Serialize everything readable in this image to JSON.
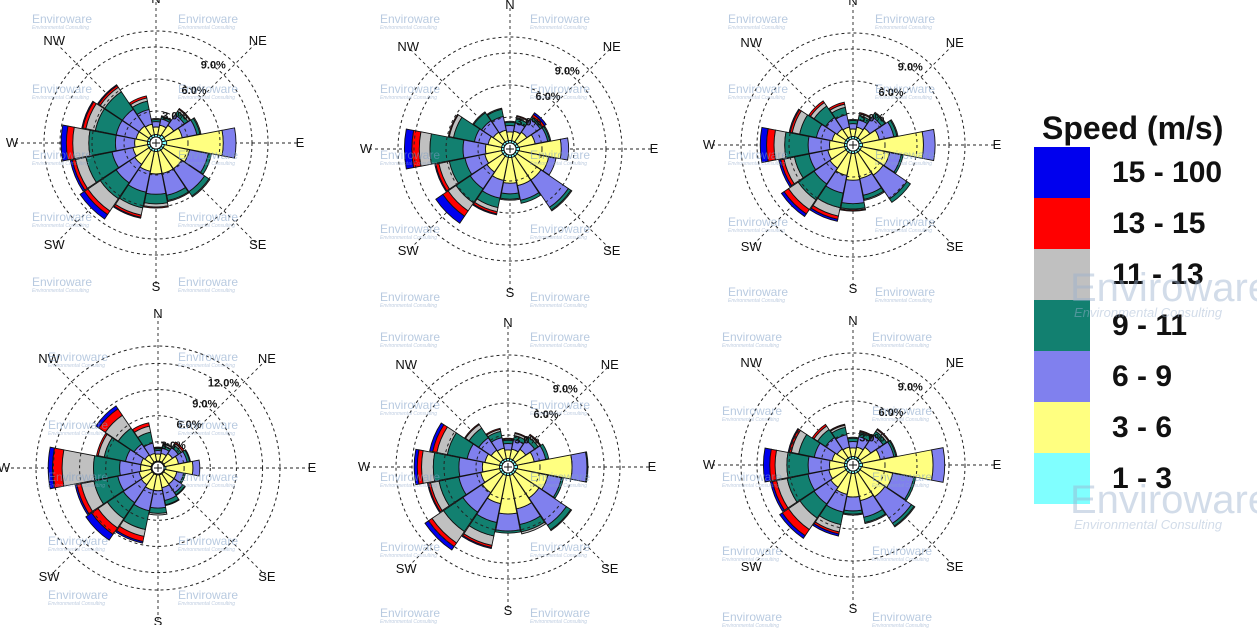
{
  "watermark": {
    "brand": "Enviroware",
    "tagline": "Environmental Consulting"
  },
  "legend": {
    "title": "Speed (m/s)",
    "classes": [
      {
        "label": "15 - 100",
        "color": "#0000ee"
      },
      {
        "label": "13 - 15",
        "color": "#ff0000"
      },
      {
        "label": "11 - 13",
        "color": "#c0c0c0"
      },
      {
        "label": "9 - 11",
        "color": "#128070"
      },
      {
        "label": "6 - 9",
        "color": "#8080ee"
      },
      {
        "label": "3 - 6",
        "color": "#ffff80"
      },
      {
        "label": "1 - 3",
        "color": "#80ffff"
      }
    ]
  },
  "chart_data": [
    {
      "type": "windrose",
      "directions": [
        "N",
        "NNE",
        "NE",
        "ENE",
        "E",
        "ESE",
        "SE",
        "SSE",
        "S",
        "SSW",
        "SW",
        "WSW",
        "W",
        "WNW",
        "NW",
        "NNW"
      ],
      "direction_labels": [
        "N",
        "NE",
        "E",
        "SE",
        "S",
        "SW",
        "W",
        "NW"
      ],
      "speed_classes": [
        "1 - 3",
        "3 - 6",
        "6 - 9",
        "9 - 11",
        "11 - 13",
        "13 - 15",
        "15 - 100"
      ],
      "ring_labels": [
        "3.0%",
        "6.0%",
        "9.0%"
      ],
      "r_max_pct": 10.5,
      "cumulative_pct": [
        [
          0.8,
          1.5,
          2.0,
          2.2,
          2.3,
          2.3,
          2.3
        ],
        [
          0.8,
          1.7,
          2.3,
          2.5,
          2.6,
          2.6,
          2.6
        ],
        [
          0.9,
          2.0,
          3.2,
          3.6,
          3.8,
          3.9,
          3.9
        ],
        [
          0.9,
          2.5,
          3.9,
          4.2,
          4.3,
          4.3,
          4.3
        ],
        [
          1.0,
          6.3,
          7.5,
          7.5,
          7.5,
          7.5,
          7.5
        ],
        [
          0.8,
          3.2,
          5.0,
          5.3,
          5.3,
          5.3,
          5.3
        ],
        [
          0.8,
          2.9,
          5.5,
          6.0,
          6.1,
          6.1,
          6.1
        ],
        [
          0.8,
          2.9,
          5.0,
          5.5,
          5.6,
          5.6,
          5.6
        ],
        [
          0.8,
          2.9,
          4.8,
          5.7,
          6.0,
          6.1,
          6.1
        ],
        [
          0.8,
          2.7,
          4.7,
          6.2,
          6.9,
          7.1,
          7.2
        ],
        [
          0.8,
          2.4,
          4.5,
          6.3,
          7.7,
          8.1,
          8.6
        ],
        [
          0.8,
          2.2,
          4.2,
          6.7,
          7.7,
          8.0,
          8.2
        ],
        [
          0.8,
          2.0,
          3.8,
          6.3,
          7.8,
          8.4,
          8.9
        ],
        [
          0.8,
          1.9,
          3.8,
          5.8,
          6.7,
          7.0,
          7.1
        ],
        [
          0.8,
          1.9,
          3.8,
          5.8,
          6.3,
          6.5,
          6.6
        ],
        [
          0.8,
          1.8,
          3.2,
          4.0,
          4.3,
          4.5,
          4.5
        ]
      ]
    },
    {
      "type": "windrose",
      "directions": [
        "N",
        "NNE",
        "NE",
        "ENE",
        "E",
        "ESE",
        "SE",
        "SSE",
        "S",
        "SSW",
        "SW",
        "WSW",
        "W",
        "WNW",
        "NW",
        "NNW"
      ],
      "direction_labels": [
        "N",
        "NE",
        "E",
        "SE",
        "S",
        "SW",
        "W",
        "NW"
      ],
      "speed_classes": [
        "1 - 3",
        "3 - 6",
        "6 - 9",
        "9 - 11",
        "11 - 13",
        "13 - 15",
        "15 - 100"
      ],
      "ring_labels": [
        "3.0%",
        "6.0%",
        "9.0%"
      ],
      "r_max_pct": 10.5,
      "cumulative_pct": [
        [
          0.8,
          1.6,
          2.2,
          2.5,
          2.6,
          2.6,
          2.6
        ],
        [
          0.8,
          1.7,
          2.5,
          2.9,
          3.1,
          3.2,
          3.2
        ],
        [
          0.8,
          1.9,
          3.4,
          3.6,
          3.7,
          3.9,
          4.1
        ],
        [
          0.8,
          2.4,
          3.6,
          3.8,
          3.9,
          3.9,
          3.9
        ],
        [
          0.9,
          4.8,
          5.5,
          5.5,
          5.5,
          5.5,
          5.5
        ],
        [
          0.8,
          3.7,
          4.4,
          4.4,
          4.4,
          4.4,
          4.4
        ],
        [
          0.8,
          3.5,
          6.6,
          6.9,
          7.0,
          7.0,
          7.0
        ],
        [
          0.8,
          3.5,
          4.9,
          5.2,
          5.2,
          5.2,
          5.2
        ],
        [
          0.8,
          3.2,
          4.2,
          4.7,
          4.8,
          4.8,
          4.8
        ],
        [
          0.8,
          3.0,
          4.7,
          5.6,
          6.0,
          6.2,
          6.3
        ],
        [
          0.8,
          2.6,
          4.5,
          6.1,
          7.0,
          7.6,
          8.4
        ],
        [
          0.8,
          2.4,
          4.3,
          5.8,
          6.8,
          7.1,
          7.2
        ],
        [
          0.8,
          2.3,
          4.4,
          7.5,
          8.5,
          9.2,
          9.9
        ],
        [
          0.8,
          2.1,
          3.4,
          5.4,
          5.8,
          5.9,
          5.9
        ],
        [
          0.8,
          1.9,
          3.2,
          4.1,
          4.2,
          4.2,
          4.2
        ],
        [
          0.8,
          1.8,
          3.1,
          3.8,
          3.9,
          3.9,
          3.9
        ]
      ]
    },
    {
      "type": "windrose",
      "directions": [
        "N",
        "NNE",
        "NE",
        "ENE",
        "E",
        "ESE",
        "SE",
        "SSE",
        "S",
        "SSW",
        "SW",
        "WSW",
        "W",
        "WNW",
        "NW",
        "NNW"
      ],
      "direction_labels": [
        "N",
        "NE",
        "E",
        "SE",
        "S",
        "SW",
        "W",
        "NW"
      ],
      "speed_classes": [
        "1 - 3",
        "3 - 6",
        "6 - 9",
        "9 - 11",
        "11 - 13",
        "13 - 15",
        "15 - 100"
      ],
      "ring_labels": [
        "3.0%",
        "6.0%",
        "9.0%"
      ],
      "r_max_pct": 10.5,
      "cumulative_pct": [
        [
          0.8,
          1.5,
          2.0,
          2.3,
          2.4,
          2.4,
          2.4
        ],
        [
          0.8,
          1.7,
          2.4,
          2.8,
          3.0,
          3.1,
          3.1
        ],
        [
          0.8,
          1.9,
          3.2,
          3.6,
          3.7,
          3.7,
          3.7
        ],
        [
          0.8,
          2.5,
          3.9,
          4.2,
          4.3,
          4.3,
          4.3
        ],
        [
          0.9,
          6.6,
          7.7,
          7.7,
          7.7,
          7.7,
          7.7
        ],
        [
          0.8,
          3.5,
          4.6,
          4.8,
          4.8,
          4.8,
          4.8
        ],
        [
          0.8,
          3.4,
          6.1,
          6.5,
          6.5,
          6.5,
          6.5
        ],
        [
          0.8,
          3.2,
          4.8,
          5.2,
          5.3,
          5.3,
          5.3
        ],
        [
          0.8,
          3.3,
          5.5,
          6.0,
          6.1,
          6.2,
          6.2
        ],
        [
          0.8,
          2.9,
          4.6,
          6.0,
          6.8,
          7.1,
          7.3
        ],
        [
          0.8,
          2.6,
          4.4,
          6.2,
          7.3,
          7.8,
          8.1
        ],
        [
          0.8,
          2.4,
          4.2,
          5.6,
          6.6,
          6.9,
          7.1
        ],
        [
          0.8,
          2.2,
          4.2,
          6.4,
          7.4,
          8.1,
          8.7
        ],
        [
          0.8,
          2.0,
          3.5,
          5.1,
          5.8,
          6.0,
          6.1
        ],
        [
          0.8,
          1.8,
          3.1,
          4.4,
          4.8,
          5.0,
          5.0
        ],
        [
          0.8,
          1.7,
          2.9,
          3.6,
          3.9,
          4.1,
          4.1
        ]
      ]
    },
    {
      "type": "windrose",
      "directions": [
        "N",
        "NNE",
        "NE",
        "ENE",
        "E",
        "ESE",
        "SE",
        "SSE",
        "S",
        "SSW",
        "SW",
        "WSW",
        "W",
        "WNW",
        "NW",
        "NNW"
      ],
      "direction_labels": [
        "N",
        "NE",
        "E",
        "SE",
        "S",
        "SW",
        "W",
        "NW"
      ],
      "speed_classes": [
        "1 - 3",
        "3 - 6",
        "6 - 9",
        "9 - 11",
        "11 - 13",
        "13 - 15",
        "15 - 100"
      ],
      "ring_labels": [
        "3.0%",
        "6.0%",
        "9.0%",
        "12.0%"
      ],
      "r_max_pct": 14.0,
      "cumulative_pct": [
        [
          0.8,
          1.6,
          2.0,
          2.2,
          2.3,
          2.4,
          2.4
        ],
        [
          0.8,
          1.7,
          2.3,
          2.6,
          2.8,
          2.9,
          2.9
        ],
        [
          0.8,
          2.0,
          2.8,
          3.2,
          3.4,
          3.6,
          3.6
        ],
        [
          0.8,
          2.4,
          3.4,
          3.7,
          3.8,
          3.8,
          3.8
        ],
        [
          0.9,
          4.0,
          4.8,
          4.8,
          4.8,
          4.8,
          4.8
        ],
        [
          0.8,
          2.2,
          3.0,
          3.2,
          3.2,
          3.2,
          3.2
        ],
        [
          0.8,
          2.2,
          3.4,
          3.7,
          3.8,
          3.8,
          3.8
        ],
        [
          0.8,
          2.3,
          3.8,
          4.3,
          4.4,
          4.4,
          4.4
        ],
        [
          0.8,
          2.6,
          4.6,
          5.2,
          5.4,
          5.4,
          5.4
        ],
        [
          0.8,
          2.6,
          5.0,
          7.2,
          8.0,
          8.6,
          8.8
        ],
        [
          0.8,
          2.3,
          4.8,
          7.0,
          8.3,
          9.2,
          10.0
        ],
        [
          0.8,
          2.2,
          4.7,
          7.5,
          9.0,
          9.5,
          9.7
        ],
        [
          0.8,
          2.0,
          4.4,
          7.4,
          11.0,
          12.1,
          12.6
        ],
        [
          0.8,
          2.0,
          3.8,
          6.3,
          7.0,
          7.2,
          7.2
        ],
        [
          0.8,
          1.8,
          3.3,
          5.5,
          7.3,
          8.2,
          8.6
        ],
        [
          0.8,
          1.7,
          2.9,
          4.2,
          4.9,
          5.3,
          5.3
        ]
      ]
    },
    {
      "type": "windrose",
      "directions": [
        "N",
        "NNE",
        "NE",
        "ENE",
        "E",
        "ESE",
        "SE",
        "SSE",
        "S",
        "SSW",
        "SW",
        "WSW",
        "W",
        "WNW",
        "NW",
        "NNW"
      ],
      "direction_labels": [
        "N",
        "NE",
        "E",
        "SE",
        "S",
        "SW",
        "W",
        "NW"
      ],
      "speed_classes": [
        "1 - 3",
        "3 - 6",
        "6 - 9",
        "9 - 11",
        "11 - 13",
        "13 - 15",
        "15 - 100"
      ],
      "ring_labels": [
        "3.0%",
        "6.0%",
        "9.0%"
      ],
      "r_max_pct": 10.5,
      "cumulative_pct": [
        [
          0.8,
          1.6,
          2.2,
          2.5,
          2.6,
          2.7,
          2.7
        ],
        [
          0.8,
          1.7,
          2.6,
          3.0,
          3.2,
          3.3,
          3.3
        ],
        [
          0.8,
          2.0,
          3.0,
          3.4,
          3.6,
          3.7,
          3.7
        ],
        [
          0.8,
          2.5,
          3.6,
          3.9,
          3.9,
          3.9,
          3.9
        ],
        [
          0.9,
          6.0,
          7.4,
          7.5,
          7.5,
          7.5,
          7.5
        ],
        [
          0.8,
          3.8,
          5.1,
          5.3,
          5.3,
          5.3,
          5.3
        ],
        [
          0.8,
          3.5,
          6.6,
          7.1,
          7.2,
          7.2,
          7.2
        ],
        [
          0.8,
          4.0,
          5.5,
          6.2,
          6.4,
          6.4,
          6.4
        ],
        [
          0.8,
          4.4,
          6.0,
          6.2,
          6.2,
          6.2,
          6.2
        ],
        [
          0.8,
          3.5,
          5.3,
          6.6,
          7.5,
          7.7,
          7.8
        ],
        [
          0.8,
          2.9,
          5.1,
          7.3,
          8.6,
          9.0,
          9.4
        ],
        [
          0.8,
          2.6,
          4.7,
          6.6,
          7.4,
          7.6,
          7.7
        ],
        [
          0.8,
          2.4,
          4.6,
          7.0,
          8.1,
          8.5,
          8.8
        ],
        [
          0.8,
          2.2,
          3.9,
          5.8,
          6.8,
          7.2,
          7.5
        ],
        [
          0.8,
          1.9,
          3.3,
          4.4,
          4.8,
          4.9,
          4.9
        ],
        [
          0.8,
          1.8,
          2.8,
          3.4,
          3.6,
          3.7,
          3.7
        ]
      ]
    },
    {
      "type": "windrose",
      "directions": [
        "N",
        "NNE",
        "NE",
        "ENE",
        "E",
        "ESE",
        "SE",
        "SSE",
        "S",
        "SSW",
        "SW",
        "WSW",
        "W",
        "WNW",
        "NW",
        "NNW"
      ],
      "direction_labels": [
        "N",
        "NE",
        "E",
        "SE",
        "S",
        "SW",
        "W",
        "NW"
      ],
      "speed_classes": [
        "1 - 3",
        "3 - 6",
        "6 - 9",
        "9 - 11",
        "11 - 13",
        "13 - 15",
        "15 - 100"
      ],
      "ring_labels": [
        "3.0%",
        "6.0%",
        "9.0%"
      ],
      "r_max_pct": 10.5,
      "cumulative_pct": [
        [
          0.8,
          1.6,
          2.2,
          2.5,
          2.6,
          2.6,
          2.6
        ],
        [
          0.8,
          1.7,
          2.7,
          3.1,
          3.2,
          3.3,
          3.3
        ],
        [
          0.8,
          2.0,
          3.4,
          3.8,
          4.0,
          4.1,
          4.1
        ],
        [
          0.8,
          2.6,
          3.9,
          4.1,
          4.2,
          4.2,
          4.2
        ],
        [
          0.9,
          7.5,
          8.6,
          8.6,
          8.6,
          8.6,
          8.6
        ],
        [
          0.8,
          3.8,
          5.8,
          6.0,
          6.0,
          6.0,
          6.0
        ],
        [
          0.8,
          3.6,
          6.6,
          6.9,
          7.0,
          7.0,
          7.0
        ],
        [
          0.8,
          3.4,
          5.0,
          5.5,
          5.6,
          5.6,
          5.6
        ],
        [
          0.8,
          3.0,
          4.3,
          4.6,
          4.7,
          4.7,
          4.7
        ],
        [
          0.8,
          2.8,
          4.5,
          5.7,
          6.4,
          6.6,
          6.8
        ],
        [
          0.8,
          2.5,
          4.4,
          6.0,
          7.3,
          8.0,
          8.3
        ],
        [
          0.8,
          2.3,
          4.3,
          6.3,
          7.3,
          7.7,
          7.9
        ],
        [
          0.8,
          2.2,
          4.2,
          6.2,
          7.3,
          7.8,
          8.4
        ],
        [
          0.8,
          2.0,
          3.7,
          5.2,
          5.9,
          6.1,
          6.2
        ],
        [
          0.8,
          1.8,
          3.1,
          4.0,
          4.4,
          4.6,
          4.6
        ],
        [
          0.8,
          1.7,
          2.9,
          3.6,
          3.8,
          3.9,
          3.9
        ]
      ]
    }
  ]
}
